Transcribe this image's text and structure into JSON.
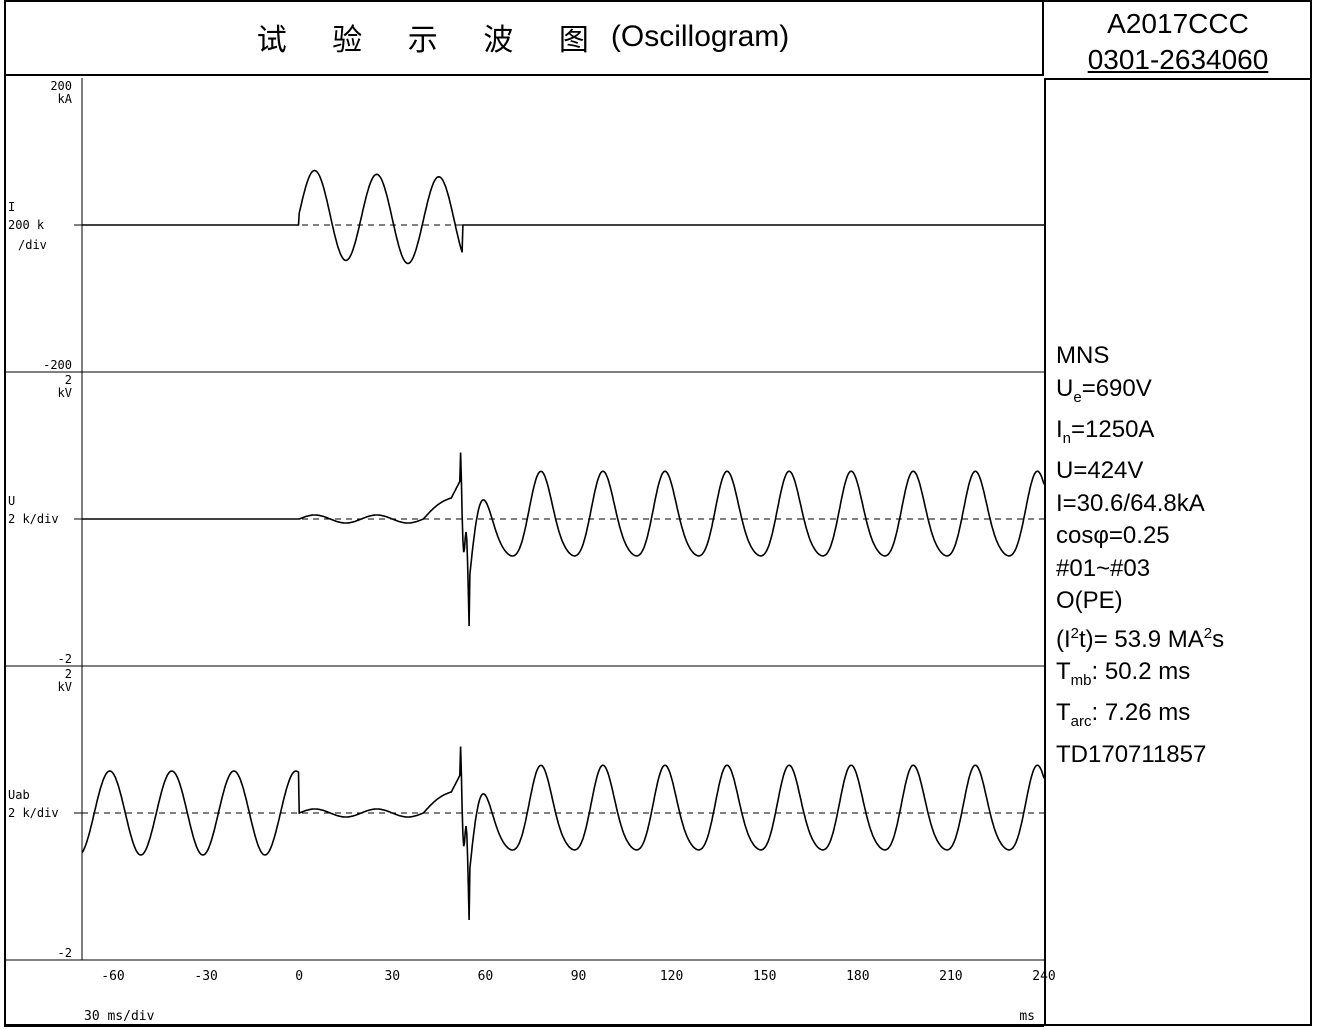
{
  "header": {
    "title_cn": "试 验 示 波 图",
    "title_en": "(Oscillogram)",
    "report_id": "A2017CCC",
    "report_no": "0301-2634060"
  },
  "params": {
    "product": "MNS",
    "ue": "=690V",
    "in": "=1250A",
    "u": "U=424V",
    "i": "I=30.6/64.8kA",
    "cos": "cosφ=0.25",
    "samples": "#01~#03",
    "mode": "O(PE)",
    "i2t": "= 53.9 MA",
    "i2t_unit": "s",
    "tmb": ":  50.2 ms",
    "tarc": ":  7.26 ms",
    "td": "TD170711857"
  },
  "chart_data": {
    "type": "line",
    "xlabel": "30 ms/div",
    "xunit": "ms",
    "xlim": [
      -70,
      240
    ],
    "x_ticks": [
      -60,
      -30,
      0,
      30,
      60,
      90,
      120,
      150,
      180,
      210,
      240
    ],
    "channels": [
      {
        "name": "I",
        "scale": "200 k",
        "scale_sub": "/div",
        "unit": "kA",
        "top_label": "200",
        "bottom_label": "-200",
        "ylim": [
          -200,
          200
        ]
      },
      {
        "name": "U",
        "scale": "2 k/div",
        "unit": "kV",
        "top_label": "2",
        "bottom_label": "-2",
        "ylim": [
          -2,
          2
        ]
      },
      {
        "name": "Uab",
        "scale": "2 k/div",
        "unit": "kV",
        "top_label": "2",
        "bottom_label": "-2",
        "ylim": [
          -2,
          2
        ]
      }
    ]
  }
}
